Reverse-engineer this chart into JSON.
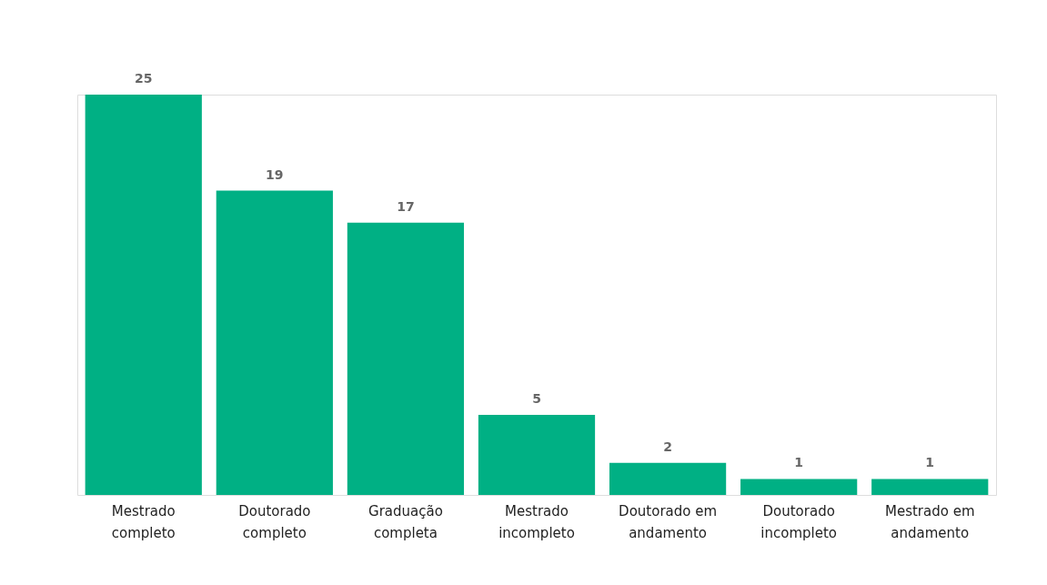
{
  "chart_data": {
    "type": "bar",
    "categories": [
      "Mestrado completo",
      "Doutorado completo",
      "Graduação completa",
      "Mestrado incompleto",
      "Doutorado em andamento",
      "Doutorado incompleto",
      "Mestrado em andamento"
    ],
    "values": [
      25,
      19,
      17,
      5,
      2,
      1,
      1
    ],
    "color": "#00b084",
    "data_labels": true
  }
}
